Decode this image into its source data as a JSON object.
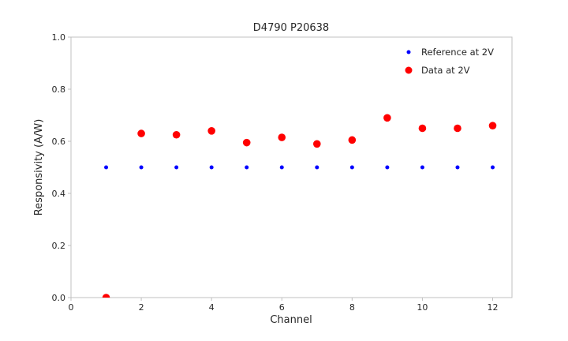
{
  "figure": {
    "title": "D4790 P20638",
    "xlabel": "Channel",
    "ylabel": "Responsivity (A/W)"
  },
  "legend": {
    "items": [
      {
        "label": "Reference at 2V",
        "color": "#0000ff"
      },
      {
        "label": "Data at 2V",
        "color": "#ff0000"
      }
    ]
  },
  "chart_data": {
    "type": "scatter",
    "title": "D4790 P20638",
    "xlabel": "Channel",
    "ylabel": "Responsivity (A/W)",
    "xlim": [
      0,
      12.55
    ],
    "ylim": [
      0,
      1.0
    ],
    "x_ticks": [
      0,
      2,
      4,
      6,
      8,
      10,
      12
    ],
    "y_ticks": [
      0.0,
      0.2,
      0.4,
      0.6,
      0.8,
      1.0
    ],
    "grid": false,
    "legend_position": "upper right",
    "x": [
      1,
      2,
      3,
      4,
      5,
      6,
      7,
      8,
      9,
      10,
      11,
      12
    ],
    "series": [
      {
        "name": "Reference at 2V",
        "color": "#0000ff",
        "marker_size": 2.5,
        "values": [
          0.5,
          0.5,
          0.5,
          0.5,
          0.5,
          0.5,
          0.5,
          0.5,
          0.5,
          0.5,
          0.5,
          0.5
        ]
      },
      {
        "name": "Data at 2V",
        "color": "#ff0000",
        "marker_size": 4.8,
        "values": [
          0.0,
          0.63,
          0.625,
          0.64,
          0.595,
          0.615,
          0.59,
          0.605,
          0.69,
          0.65,
          0.65,
          0.66
        ]
      }
    ]
  }
}
